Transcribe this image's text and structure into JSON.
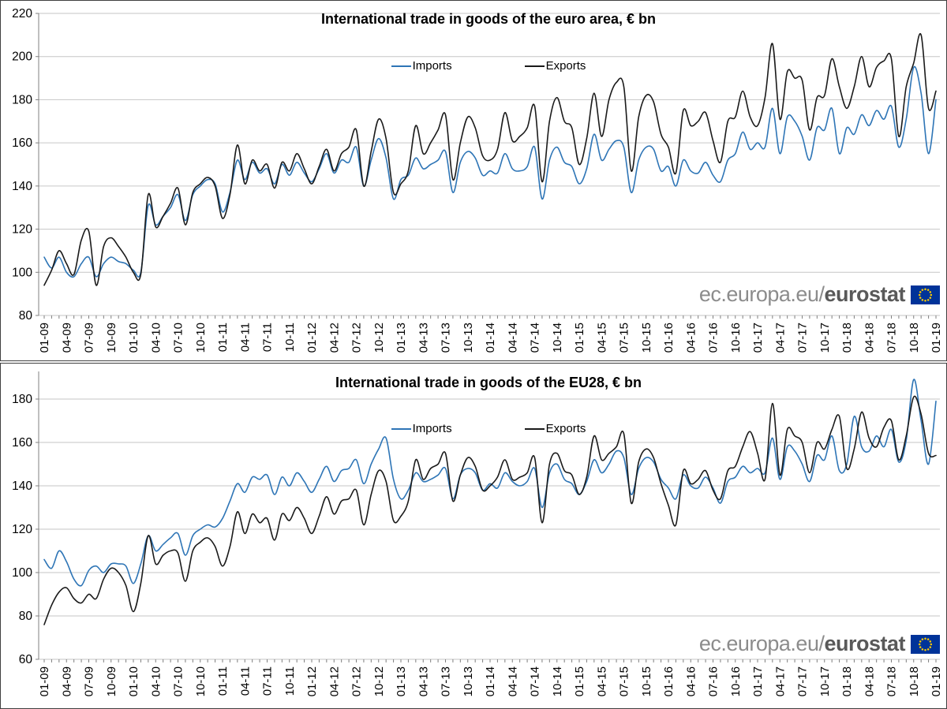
{
  "branding": {
    "url_plain": "ec.europa.eu/",
    "url_bold": "eurostat"
  },
  "colors": {
    "imports": "#2E75B6",
    "exports": "#1A1A1A",
    "grid": "#C6C6C6",
    "axis": "#808080",
    "text": "#000000",
    "watermark_plain": "#8C8C8C",
    "watermark_bold": "#595959",
    "flag_bg": "#003399",
    "flag_stars": "#FFCC00"
  },
  "chart_data": [
    {
      "type": "line",
      "title": "International trade in goods of the euro area, € bn",
      "ylim": [
        80,
        220
      ],
      "yticks": [
        80,
        100,
        120,
        140,
        160,
        180,
        200,
        220
      ],
      "grid": true,
      "legend_position": "top-center",
      "x_tick_labels": [
        "01-09",
        "04-09",
        "07-09",
        "10-09",
        "01-10",
        "04-10",
        "07-10",
        "10-10",
        "01-11",
        "04-11",
        "07-11",
        "10-11",
        "01-12",
        "04-12",
        "07-12",
        "10-12",
        "01-13",
        "04-13",
        "07-13",
        "10-13",
        "01-14",
        "04-14",
        "07-14",
        "10-14",
        "01-15",
        "04-15",
        "07-15",
        "10-15",
        "01-16",
        "04-16",
        "07-16",
        "10-16",
        "01-17",
        "04-17",
        "07-17",
        "10-17",
        "01-18",
        "04-18",
        "07-18",
        "10-18",
        "01-19"
      ],
      "x_label_every_n_months": 3,
      "series": [
        {
          "name": "Imports",
          "color": "#2E75B6",
          "values": [
            107,
            102,
            107,
            100,
            98,
            104,
            107,
            98,
            104,
            107,
            105,
            104,
            101,
            100,
            131,
            122,
            126,
            130,
            136,
            124,
            136,
            140,
            143,
            141,
            128,
            137,
            152,
            143,
            151,
            146,
            148,
            141,
            150,
            145,
            151,
            146,
            142,
            148,
            155,
            146,
            152,
            151,
            158,
            140,
            152,
            162,
            153,
            134,
            143,
            145,
            153,
            148,
            150,
            152,
            156,
            137,
            151,
            156,
            153,
            145,
            147,
            146,
            155,
            148,
            147,
            149,
            158,
            134,
            152,
            158,
            151,
            149,
            141,
            148,
            164,
            152,
            157,
            161,
            158,
            137,
            152,
            158,
            157,
            147,
            149,
            140,
            152,
            147,
            146,
            151,
            145,
            142,
            152,
            155,
            165,
            157,
            160,
            158,
            176,
            155,
            172,
            170,
            163,
            152,
            167,
            166,
            176,
            155,
            167,
            164,
            173,
            168,
            175,
            171,
            177,
            158,
            171,
            195,
            183,
            155,
            180
          ]
        },
        {
          "name": "Exports",
          "color": "#1A1A1A",
          "values": [
            94,
            101,
            110,
            104,
            99,
            115,
            119,
            94,
            112,
            116,
            112,
            107,
            100,
            99,
            136,
            121,
            126,
            132,
            139,
            122,
            137,
            141,
            144,
            140,
            125,
            136,
            159,
            141,
            152,
            147,
            150,
            139,
            151,
            147,
            155,
            148,
            141,
            149,
            157,
            147,
            155,
            158,
            166,
            140,
            156,
            171,
            162,
            137,
            141,
            147,
            168,
            155,
            160,
            166,
            173,
            143,
            160,
            172,
            167,
            154,
            152,
            157,
            174,
            161,
            163,
            167,
            177,
            142,
            170,
            181,
            170,
            167,
            150,
            162,
            183,
            163,
            180,
            188,
            186,
            147,
            172,
            182,
            179,
            164,
            158,
            146,
            175,
            168,
            170,
            174,
            161,
            151,
            170,
            172,
            184,
            172,
            168,
            181,
            206,
            171,
            193,
            190,
            189,
            166,
            181,
            182,
            199,
            186,
            176,
            186,
            200,
            186,
            195,
            198,
            199,
            163,
            186,
            197,
            210,
            176,
            184
          ]
        }
      ]
    },
    {
      "type": "line",
      "title": "International trade in goods of the EU28, € bn",
      "ylim": [
        60,
        180
      ],
      "yticks": [
        60,
        80,
        100,
        120,
        140,
        160,
        180
      ],
      "grid": true,
      "legend_position": "top-center",
      "x_tick_labels": [
        "01-09",
        "04-09",
        "07-09",
        "10-09",
        "01-10",
        "04-10",
        "07-10",
        "10-10",
        "01-11",
        "04-11",
        "07-11",
        "10-11",
        "01-12",
        "04-12",
        "07-12",
        "10-12",
        "01-13",
        "04-13",
        "07-13",
        "10-13",
        "01-14",
        "04-14",
        "07-14",
        "10-14",
        "01-15",
        "04-15",
        "07-15",
        "10-15",
        "01-16",
        "04-16",
        "07-16",
        "10-16",
        "01-17",
        "04-17",
        "07-17",
        "10-17",
        "01-18",
        "04-18",
        "07-18",
        "10-18",
        "01-19"
      ],
      "x_label_every_n_months": 3,
      "series": [
        {
          "name": "Imports",
          "color": "#2E75B6",
          "values": [
            106,
            102,
            110,
            105,
            97,
            94,
            101,
            103,
            100,
            104,
            104,
            103,
            95,
            104,
            117,
            110,
            113,
            116,
            118,
            108,
            117,
            120,
            122,
            121,
            125,
            133,
            141,
            137,
            144,
            143,
            145,
            136,
            144,
            140,
            146,
            142,
            137,
            143,
            149,
            142,
            147,
            148,
            152,
            141,
            150,
            157,
            162,
            143,
            134,
            138,
            146,
            142,
            143,
            145,
            148,
            134,
            145,
            148,
            146,
            138,
            141,
            139,
            146,
            142,
            140,
            142,
            148,
            130,
            146,
            150,
            143,
            141,
            136,
            142,
            152,
            146,
            150,
            156,
            153,
            136,
            148,
            153,
            151,
            143,
            139,
            134,
            145,
            140,
            139,
            144,
            139,
            132,
            142,
            144,
            149,
            146,
            148,
            146,
            162,
            143,
            158,
            156,
            150,
            142,
            154,
            152,
            163,
            147,
            150,
            172,
            158,
            156,
            163,
            158,
            166,
            151,
            161,
            189,
            170,
            150,
            179
          ]
        },
        {
          "name": "Exports",
          "color": "#1A1A1A",
          "values": [
            76,
            85,
            91,
            93,
            88,
            86,
            90,
            88,
            97,
            102,
            100,
            94,
            82,
            95,
            117,
            104,
            108,
            110,
            109,
            96,
            110,
            114,
            116,
            112,
            103,
            112,
            128,
            118,
            127,
            123,
            125,
            115,
            127,
            124,
            130,
            125,
            118,
            126,
            135,
            127,
            133,
            134,
            138,
            122,
            136,
            147,
            142,
            124,
            126,
            133,
            152,
            143,
            148,
            150,
            155,
            133,
            145,
            153,
            149,
            138,
            140,
            144,
            152,
            143,
            144,
            146,
            153,
            123,
            150,
            155,
            147,
            145,
            136,
            144,
            163,
            152,
            155,
            158,
            164,
            132,
            151,
            157,
            153,
            141,
            131,
            122,
            147,
            141,
            143,
            147,
            138,
            134,
            147,
            149,
            158,
            165,
            155,
            143,
            178,
            145,
            166,
            163,
            160,
            146,
            160,
            157,
            166,
            172,
            148,
            157,
            174,
            162,
            158,
            167,
            170,
            152,
            163,
            181,
            173,
            155,
            154
          ]
        }
      ]
    }
  ]
}
